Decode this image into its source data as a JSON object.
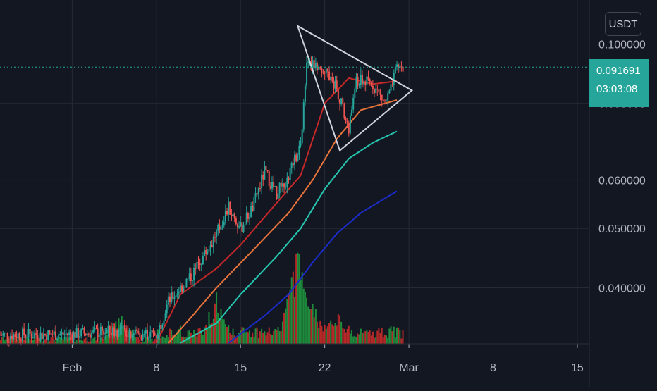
{
  "currency": "USDT",
  "last_price": {
    "value": "0.091691",
    "countdown": "03:03:08"
  },
  "colors": {
    "background": "#131722",
    "grid": "#262a35",
    "axis_text": "#b2b5be",
    "up": "#26a69a",
    "down": "#ef5350",
    "vol_up": "#1e8c3c",
    "vol_down": "#b42828",
    "ma_red": "#c62828",
    "ma_orange": "#e8743b",
    "ma_teal": "#26c6b0",
    "ma_blue": "#1b2cc8",
    "pattern": "#d1d4dc",
    "price_line": "#26a69a"
  },
  "chart_data": {
    "type": "candlestick",
    "title": "",
    "y_scale": "log",
    "ylim": [
      0.0324,
      0.118
    ],
    "y_ticks": [
      "0.100000",
      "0.080000",
      "0.060000",
      "0.050000",
      "0.040000"
    ],
    "y_tick_values": [
      0.1,
      0.08,
      0.06,
      0.05,
      0.04
    ],
    "x_ticks": [
      {
        "label": "Feb",
        "date": "2021-02-01"
      },
      {
        "label": "8",
        "date": "2021-02-08"
      },
      {
        "label": "15",
        "date": "2021-02-15"
      },
      {
        "label": "22",
        "date": "2021-02-22"
      },
      {
        "label": "Mar",
        "date": "2021-03-01"
      },
      {
        "label": "8",
        "date": "2021-03-08"
      },
      {
        "label": "15",
        "date": "2021-03-15"
      }
    ],
    "xlim": [
      "2021-01-26",
      "2021-03-16"
    ],
    "grid": true,
    "close_series": [
      {
        "date": "2021-01-26",
        "close": 0.0335
      },
      {
        "date": "2021-02-01",
        "close": 0.0336
      },
      {
        "date": "2021-02-05",
        "close": 0.034
      },
      {
        "date": "2021-02-08",
        "close": 0.0335
      },
      {
        "date": "2021-02-09",
        "close": 0.038
      },
      {
        "date": "2021-02-11",
        "close": 0.042
      },
      {
        "date": "2021-02-13",
        "close": 0.049
      },
      {
        "date": "2021-02-14",
        "close": 0.054
      },
      {
        "date": "2021-02-15",
        "close": 0.05
      },
      {
        "date": "2021-02-16",
        "close": 0.054
      },
      {
        "date": "2021-02-17",
        "close": 0.062
      },
      {
        "date": "2021-02-18",
        "close": 0.057
      },
      {
        "date": "2021-02-19",
        "close": 0.061
      },
      {
        "date": "2021-02-20",
        "close": 0.069
      },
      {
        "date": "2021-02-20T12:00",
        "close": 0.092
      },
      {
        "date": "2021-02-21",
        "close": 0.093
      },
      {
        "date": "2021-02-22",
        "close": 0.091
      },
      {
        "date": "2021-02-23",
        "close": 0.085
      },
      {
        "date": "2021-02-24",
        "close": 0.072
      },
      {
        "date": "2021-02-24T12:00",
        "close": 0.086
      },
      {
        "date": "2021-02-25",
        "close": 0.087
      },
      {
        "date": "2021-02-26",
        "close": 0.086
      },
      {
        "date": "2021-02-27",
        "close": 0.08
      },
      {
        "date": "2021-02-27T12:00",
        "close": 0.084
      },
      {
        "date": "2021-02-28",
        "close": 0.0917
      }
    ],
    "moving_averages": [
      {
        "color": "#c62828",
        "points": [
          [
            "2021-02-08",
            0.0325
          ],
          [
            "2021-02-10",
            0.039
          ],
          [
            "2021-02-13",
            0.043
          ],
          [
            "2021-02-15",
            0.047
          ],
          [
            "2021-02-18",
            0.055
          ],
          [
            "2021-02-20",
            0.061
          ],
          [
            "2021-02-22",
            0.08
          ],
          [
            "2021-02-24",
            0.088
          ],
          [
            "2021-02-26",
            0.086
          ],
          [
            "2021-02-28",
            0.087
          ]
        ]
      },
      {
        "color": "#e8743b",
        "points": [
          [
            "2021-02-09",
            0.0325
          ],
          [
            "2021-02-11",
            0.036
          ],
          [
            "2021-02-13",
            0.04
          ],
          [
            "2021-02-16",
            0.046
          ],
          [
            "2021-02-19",
            0.053
          ],
          [
            "2021-02-21",
            0.06
          ],
          [
            "2021-02-23",
            0.07
          ],
          [
            "2021-02-25",
            0.078
          ],
          [
            "2021-02-28",
            0.081
          ]
        ]
      },
      {
        "color": "#26c6b0",
        "points": [
          [
            "2021-02-10",
            0.0325
          ],
          [
            "2021-02-13",
            0.035
          ],
          [
            "2021-02-15",
            0.039
          ],
          [
            "2021-02-18",
            0.045
          ],
          [
            "2021-02-20",
            0.05
          ],
          [
            "2021-02-22",
            0.058
          ],
          [
            "2021-02-24",
            0.065
          ],
          [
            "2021-02-26",
            0.069
          ],
          [
            "2021-02-28",
            0.072
          ]
        ]
      },
      {
        "color": "#1b2cc8",
        "points": [
          [
            "2021-02-14",
            0.0325
          ],
          [
            "2021-02-17",
            0.036
          ],
          [
            "2021-02-19",
            0.039
          ],
          [
            "2021-02-21",
            0.044
          ],
          [
            "2021-02-23",
            0.049
          ],
          [
            "2021-02-25",
            0.053
          ],
          [
            "2021-02-28",
            0.0575
          ]
        ]
      }
    ],
    "triangle_pattern": [
      [
        "2021-02-19T18:00",
        0.107
      ],
      [
        "2021-03-01T06:00",
        0.084
      ],
      [
        "2021-02-23T06:00",
        0.067
      ]
    ],
    "volume_peaks": [
      {
        "date": "2021-02-19T18:00",
        "ratio": 0.85
      },
      {
        "date": "2021-02-19T12:00",
        "ratio": 0.67
      },
      {
        "date": "2021-02-13",
        "ratio": 0.45
      },
      {
        "date": "2021-02-20",
        "ratio": 0.58
      },
      {
        "date": "2021-02-21",
        "ratio": 0.4
      },
      {
        "date": "2021-02-23",
        "ratio": 0.3
      },
      {
        "date": "2021-02-05",
        "ratio": 0.34
      }
    ]
  }
}
